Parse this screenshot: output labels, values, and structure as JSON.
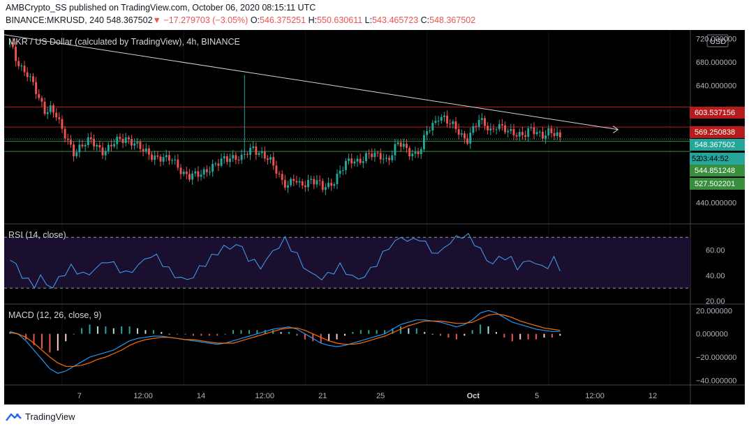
{
  "header": {
    "publisher_line": "AMBCrypto_SS published on TradingView.com, October 06, 2020 08:15:11 UTC",
    "symbol": "BINANCE:MKRUSD, 240",
    "last": "548.367502",
    "change": "−17.279703 (−3.05%)",
    "open_label": "O:",
    "open": "546.375251",
    "high_label": "H:",
    "high": "550.630611",
    "low_label": "L:",
    "low": "543.465723",
    "close_label": "C:",
    "close": "548.367502"
  },
  "chart_data": [
    {
      "type": "candlestick",
      "title": "MKR / US Dollar (calculated by TradingView), 4h, BINANCE",
      "currency_label": "USD",
      "ylim": [
        405,
        735
      ],
      "y_ticks": [
        "720.000000",
        "680.000000",
        "640.000000",
        "440.000000"
      ],
      "x_tick_labels": [
        "7",
        "12:00",
        "14",
        "12:00",
        "21",
        "25",
        "Oct",
        "5",
        "12:00",
        "12"
      ],
      "price_labels": [
        {
          "text": "603.537156",
          "color": "#b71c1c"
        },
        {
          "text": "569.250838",
          "color": "#b71c1c"
        },
        {
          "text": "548.367502",
          "color": "#26a69a"
        },
        {
          "text": "52",
          "color": "#26a69a"
        },
        {
          "text": "03:44:52",
          "color": "#26a69a"
        },
        {
          "text": "544.851248",
          "color": "#388e3c"
        },
        {
          "text": "527.502201",
          "color": "#388e3c"
        }
      ],
      "horizontal_levels": [
        {
          "value": 603.537156,
          "color": "#b71c1c"
        },
        {
          "value": 569.250838,
          "color": "#b71c1c"
        },
        {
          "value": 544.851248,
          "color": "#388e3c"
        },
        {
          "value": 527.502201,
          "color": "#388e3c"
        }
      ],
      "close_path": [
        [
          0,
          710
        ],
        [
          2,
          685
        ],
        [
          4,
          672
        ],
        [
          6,
          662
        ],
        [
          8,
          640
        ],
        [
          10,
          615
        ],
        [
          12,
          598
        ],
        [
          14,
          604
        ],
        [
          16,
          590
        ],
        [
          18,
          560
        ],
        [
          20,
          545
        ],
        [
          22,
          528
        ],
        [
          24,
          535
        ],
        [
          26,
          540
        ],
        [
          28,
          545
        ],
        [
          30,
          538
        ],
        [
          32,
          530
        ],
        [
          34,
          532
        ],
        [
          36,
          540
        ],
        [
          38,
          548
        ],
        [
          40,
          552
        ],
        [
          42,
          545
        ],
        [
          44,
          535
        ],
        [
          46,
          528
        ],
        [
          48,
          525
        ],
        [
          50,
          520
        ],
        [
          52,
          515
        ],
        [
          54,
          512
        ],
        [
          56,
          515
        ],
        [
          58,
          505
        ],
        [
          60,
          490
        ],
        [
          62,
          482
        ],
        [
          64,
          486
        ],
        [
          66,
          492
        ],
        [
          68,
          498
        ],
        [
          70,
          500
        ],
        [
          72,
          505
        ],
        [
          74,
          515
        ],
        [
          76,
          520
        ],
        [
          78,
          518
        ],
        [
          80,
          513
        ],
        [
          82,
          525
        ],
        [
          84,
          535
        ],
        [
          86,
          528
        ],
        [
          88,
          518
        ],
        [
          90,
          508
        ],
        [
          92,
          495
        ],
        [
          94,
          480
        ],
        [
          96,
          470
        ],
        [
          98,
          478
        ],
        [
          100,
          468
        ],
        [
          102,
          474
        ],
        [
          104,
          482
        ],
        [
          106,
          475
        ],
        [
          108,
          463
        ],
        [
          110,
          468
        ],
        [
          112,
          480
        ],
        [
          114,
          495
        ],
        [
          116,
          505
        ],
        [
          118,
          510
        ],
        [
          120,
          512
        ],
        [
          122,
          518
        ],
        [
          124,
          522
        ],
        [
          126,
          518
        ],
        [
          128,
          520
        ],
        [
          130,
          515
        ],
        [
          132,
          525
        ],
        [
          134,
          540
        ],
        [
          136,
          534
        ],
        [
          138,
          528
        ],
        [
          140,
          525
        ],
        [
          142,
          532
        ],
        [
          144,
          560
        ],
        [
          146,
          572
        ],
        [
          148,
          590
        ],
        [
          150,
          585
        ],
        [
          152,
          572
        ],
        [
          154,
          566
        ],
        [
          156,
          556
        ],
        [
          158,
          550
        ],
        [
          160,
          565
        ],
        [
          162,
          578
        ],
        [
          164,
          575
        ],
        [
          166,
          565
        ],
        [
          168,
          572
        ],
        [
          170,
          565
        ],
        [
          172,
          560
        ],
        [
          174,
          562
        ],
        [
          176,
          558
        ],
        [
          178,
          556
        ],
        [
          180,
          562
        ],
        [
          182,
          560
        ],
        [
          184,
          558
        ],
        [
          186,
          562
        ],
        [
          188,
          555
        ],
        [
          190,
          548
        ]
      ],
      "trendline": {
        "start": [
          -2,
          727
        ],
        "end": [
          210,
          565
        ],
        "color": "#d1d4dc"
      },
      "spike": {
        "x": 81,
        "high": 658,
        "low": 525
      },
      "x_range": [
        -2,
        235
      ]
    },
    {
      "type": "line",
      "title": "RSI (14, close)",
      "ylim": [
        18,
        80
      ],
      "y_ticks": [
        "60.00",
        "40.00",
        "20.00"
      ],
      "band": [
        30,
        70
      ],
      "series": [
        {
          "color": "#42a5f5",
          "values": [
            52,
            48,
            40,
            35,
            33,
            38,
            34,
            30,
            38,
            42,
            46,
            44,
            40,
            42,
            45,
            49,
            52,
            48,
            45,
            41,
            44,
            48,
            52,
            56,
            54,
            50,
            44,
            40,
            38,
            36,
            40,
            45,
            50,
            54,
            58,
            63,
            60,
            66,
            60,
            54,
            50,
            47,
            52,
            59,
            63,
            68,
            62,
            55,
            48,
            42,
            40,
            38,
            40,
            44,
            47,
            43,
            39,
            37,
            40,
            44,
            50,
            56,
            63,
            66,
            70,
            68,
            67,
            70,
            64,
            60,
            56,
            62,
            66,
            69,
            72,
            70,
            66,
            60,
            52,
            50,
            53,
            55,
            52,
            47,
            49,
            52,
            50,
            46,
            48,
            52,
            46
          ]
        }
      ]
    },
    {
      "type": "line+histogram",
      "title": "MACD (12, 26, close, 9)",
      "ylim": [
        -44,
        25
      ],
      "y_ticks": [
        "20.000000",
        "0.000000",
        "−20.000000",
        "−40.000000"
      ],
      "series": [
        {
          "name": "macd",
          "color": "#2196f3",
          "values": [
            2,
            0,
            -6,
            -14,
            -22,
            -30,
            -34,
            -32,
            -28,
            -24,
            -20,
            -18,
            -16,
            -14,
            -10,
            -6,
            -4,
            -3,
            -2,
            -2,
            -3,
            -4,
            -5,
            -6,
            -7,
            -8,
            -9,
            -8,
            -6,
            -4,
            -2,
            0,
            2,
            4,
            5,
            6,
            4,
            0,
            -4,
            -8,
            -10,
            -11,
            -10,
            -8,
            -6,
            -4,
            -2,
            0,
            4,
            8,
            10,
            12,
            12,
            11,
            10,
            8,
            6,
            8,
            12,
            18,
            20,
            18,
            14,
            10,
            8,
            6,
            4,
            3,
            2,
            2
          ]
        },
        {
          "name": "signal",
          "color": "#ff6d00",
          "values": [
            1,
            0,
            -3,
            -8,
            -14,
            -20,
            -25,
            -28,
            -28,
            -27,
            -25,
            -22,
            -20,
            -17,
            -14,
            -10,
            -7,
            -5,
            -4,
            -3,
            -3,
            -4,
            -5,
            -5,
            -6,
            -7,
            -8,
            -8,
            -8,
            -6,
            -4,
            -2,
            0,
            2,
            4,
            5,
            5,
            3,
            0,
            -3,
            -6,
            -8,
            -9,
            -9,
            -8,
            -6,
            -4,
            -2,
            1,
            4,
            7,
            9,
            11,
            11,
            11,
            10,
            9,
            9,
            10,
            13,
            16,
            17,
            16,
            14,
            11,
            9,
            7,
            5,
            4,
            3
          ]
        }
      ]
    }
  ],
  "footer": {
    "brand": "TradingView"
  }
}
